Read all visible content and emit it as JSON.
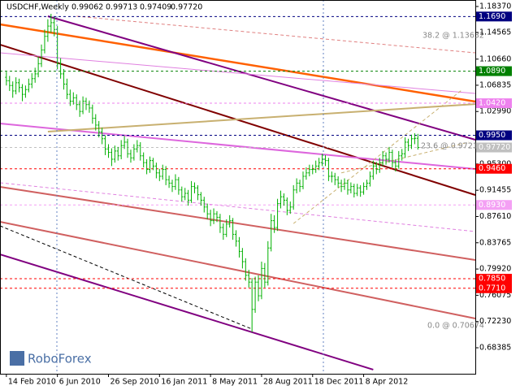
{
  "chart_data": {
    "type": "ohlc",
    "title": "USDCHF,Weekly",
    "last_bar_labels": [
      "0.99062",
      "0.99713",
      "0.97409",
      "0.97720"
    ],
    "logo": "RoboForex",
    "color": "#00b000",
    "xlim": [
      -2,
      147
    ],
    "ylim": [
      0.6458,
      1.1932
    ],
    "xticks": [
      {
        "value": 0,
        "label": "14 Feb 2010"
      },
      {
        "value": 16,
        "label": "6 Jun 2010"
      },
      {
        "value": 32,
        "label": "26 Sep 2010"
      },
      {
        "value": 48,
        "label": "16 Jan 2011"
      },
      {
        "value": 64,
        "label": "8 May 2011"
      },
      {
        "value": 80,
        "label": "28 Aug 2011"
      },
      {
        "value": 96,
        "label": "18 Dec 2011"
      },
      {
        "value": 112,
        "label": "8 Apr 2012"
      }
    ],
    "yticks": [
      {
        "value": 1.1837,
        "label": "1.18370"
      },
      {
        "value": 1.14565,
        "label": "1.14565"
      },
      {
        "value": 1.1066,
        "label": "1.10660"
      },
      {
        "value": 1.06835,
        "label": "1.06835"
      },
      {
        "value": 1.0299,
        "label": "1.02990"
      },
      {
        "value": 0.99145,
        "label": "0.99145"
      },
      {
        "value": 0.953,
        "label": "0.95300"
      },
      {
        "value": 0.91455,
        "label": "0.91455"
      },
      {
        "value": 0.8761,
        "label": "0.87610"
      },
      {
        "value": 0.83765,
        "label": "0.83765"
      },
      {
        "value": 0.7992,
        "label": "0.79920"
      },
      {
        "value": 0.76075,
        "label": "0.76075"
      },
      {
        "value": 0.7223,
        "label": "0.72230"
      },
      {
        "value": 0.68385,
        "label": "0.68385"
      }
    ],
    "levels": [
      {
        "value": 1.169,
        "label": "1.1690",
        "color": "#000080"
      },
      {
        "value": 1.089,
        "label": "1.0890",
        "color": "#008000"
      },
      {
        "value": 1.042,
        "label": "1.0420",
        "color": "#ee82ee"
      },
      {
        "value": 0.995,
        "label": "0.9950",
        "color": "#000080"
      },
      {
        "value": 0.9772,
        "label": "0.97720",
        "color": "#c0c0c0"
      },
      {
        "value": 0.946,
        "label": "0.9460",
        "color": "#ff0000"
      },
      {
        "value": 0.893,
        "label": "0.8930",
        "color": "#f4a0f4"
      },
      {
        "value": 0.785,
        "label": "0.7850",
        "color": "#ff0000"
      },
      {
        "value": 0.771,
        "label": "0.7710",
        "color": "#ff0000"
      }
    ],
    "fib_labels": [
      "38.2 @ 1.13632",
      "23.6 @ 0.97214",
      "0.0 @ 0.70674"
    ],
    "trendlines": [
      {
        "x": [
          -2,
          147
        ],
        "y": [
          1.1575,
          1.0445
        ],
        "color": "#ff6000",
        "width": 2.5
      },
      {
        "x": [
          13,
          147
        ],
        "y": [
          1.1694,
          0.9885
        ],
        "color": "#800080",
        "width": 2
      },
      {
        "x": [
          -2,
          147
        ],
        "y": [
          1.1278,
          0.9076
        ],
        "color": "#800000",
        "width": 2
      },
      {
        "x": [
          -2,
          147
        ],
        "y": [
          1.0123,
          0.9457
        ],
        "color": "#dd66dd",
        "width": 2
      },
      {
        "x": [
          13,
          147
        ],
        "y": [
          1.0004,
          1.0408
        ],
        "color": "#c8b070",
        "width": 2
      },
      {
        "x": [
          -2,
          115
        ],
        "y": [
          0.8207,
          0.6518
        ],
        "color": "#800080",
        "width": 2
      },
      {
        "x": [
          -2,
          147
        ],
        "y": [
          0.9195,
          0.8124
        ],
        "color": "#d06060",
        "width": 2
      },
      {
        "x": [
          -2,
          147
        ],
        "y": [
          0.8683,
          0.7267
        ],
        "color": "#d06060",
        "width": 2
      },
      {
        "x": [
          22,
          147
        ],
        "y": [
          1.1694,
          1.1158
        ],
        "color": "#e08080",
        "width": 1,
        "dash": true
      },
      {
        "x": [
          -2,
          147
        ],
        "y": [
          1.1158,
          1.0563
        ],
        "color": "#e080e0",
        "width": 1
      },
      {
        "x": [
          -2,
          147
        ],
        "y": [
          0.9255,
          0.8541
        ],
        "color": "#e080e0",
        "width": 1,
        "dash": true
      },
      {
        "x": [
          -2,
          77
        ],
        "y": [
          0.8624,
          0.7112
        ],
        "color": "#000000",
        "width": 1,
        "dash": true
      },
      {
        "x": [
          90,
          143
        ],
        "y": [
          0.8658,
          1.0622
        ],
        "color": "#c8b070",
        "width": 1,
        "dash": true
      },
      {
        "x": [
          105,
          145
        ],
        "y": [
          0.94,
          0.985
        ],
        "color": "#c8b070",
        "width": 1,
        "dash": true
      }
    ],
    "values": [
      [
        1.08,
        1.088,
        1.068,
        1.075
      ],
      [
        1.075,
        1.082,
        1.06,
        1.068
      ],
      [
        1.068,
        1.074,
        1.05,
        1.06
      ],
      [
        1.06,
        1.08,
        1.055,
        1.072
      ],
      [
        1.072,
        1.078,
        1.058,
        1.065
      ],
      [
        1.065,
        1.07,
        1.045,
        1.055
      ],
      [
        1.055,
        1.068,
        1.05,
        1.062
      ],
      [
        1.062,
        1.078,
        1.058,
        1.07
      ],
      [
        1.07,
        1.086,
        1.064,
        1.078
      ],
      [
        1.078,
        1.094,
        1.072,
        1.085
      ],
      [
        1.085,
        1.11,
        1.08,
        1.1
      ],
      [
        1.1,
        1.128,
        1.095,
        1.12
      ],
      [
        1.12,
        1.15,
        1.115,
        1.14
      ],
      [
        1.14,
        1.165,
        1.132,
        1.155
      ],
      [
        1.155,
        1.173,
        1.145,
        1.16
      ],
      [
        1.16,
        1.168,
        1.14,
        1.15
      ],
      [
        1.15,
        1.155,
        1.092,
        1.1
      ],
      [
        1.1,
        1.108,
        1.078,
        1.085
      ],
      [
        1.085,
        1.092,
        1.062,
        1.07
      ],
      [
        1.07,
        1.078,
        1.048,
        1.055
      ],
      [
        1.055,
        1.062,
        1.038,
        1.045
      ],
      [
        1.045,
        1.058,
        1.04,
        1.05
      ],
      [
        1.05,
        1.055,
        1.032,
        1.04
      ],
      [
        1.04,
        1.046,
        1.022,
        1.03
      ],
      [
        1.03,
        1.052,
        1.026,
        1.045
      ],
      [
        1.045,
        1.05,
        1.032,
        1.04
      ],
      [
        1.04,
        1.046,
        1.028,
        1.035
      ],
      [
        1.035,
        1.04,
        1.012,
        1.02
      ],
      [
        1.02,
        1.026,
        1.002,
        1.01
      ],
      [
        1.01,
        1.016,
        0.992,
        1.0
      ],
      [
        1.0,
        1.006,
        0.982,
        0.99
      ],
      [
        0.99,
        0.995,
        0.966,
        0.975
      ],
      [
        0.975,
        0.982,
        0.962,
        0.97
      ],
      [
        0.97,
        0.976,
        0.95,
        0.96
      ],
      [
        0.96,
        0.98,
        0.955,
        0.972
      ],
      [
        0.972,
        0.978,
        0.958,
        0.965
      ],
      [
        0.965,
        0.988,
        0.96,
        0.98
      ],
      [
        0.98,
        0.994,
        0.975,
        0.985
      ],
      [
        0.985,
        0.99,
        0.962,
        0.968
      ],
      [
        0.968,
        0.974,
        0.955,
        0.962
      ],
      [
        0.962,
        0.982,
        0.958,
        0.975
      ],
      [
        0.975,
        0.988,
        0.97,
        0.98
      ],
      [
        0.98,
        0.985,
        0.958,
        0.965
      ],
      [
        0.965,
        0.97,
        0.948,
        0.955
      ],
      [
        0.955,
        0.96,
        0.938,
        0.945
      ],
      [
        0.945,
        0.964,
        0.94,
        0.958
      ],
      [
        0.958,
        0.962,
        0.944,
        0.95
      ],
      [
        0.95,
        0.955,
        0.932,
        0.94
      ],
      [
        0.94,
        0.946,
        0.928,
        0.935
      ],
      [
        0.935,
        0.952,
        0.93,
        0.945
      ],
      [
        0.945,
        0.95,
        0.922,
        0.93
      ],
      [
        0.93,
        0.936,
        0.918,
        0.925
      ],
      [
        0.925,
        0.93,
        0.912,
        0.92
      ],
      [
        0.92,
        0.938,
        0.915,
        0.93
      ],
      [
        0.93,
        0.934,
        0.908,
        0.915
      ],
      [
        0.915,
        0.92,
        0.898,
        0.905
      ],
      [
        0.905,
        0.918,
        0.9,
        0.91
      ],
      [
        0.91,
        0.915,
        0.892,
        0.9
      ],
      [
        0.9,
        0.928,
        0.896,
        0.92
      ],
      [
        0.92,
        0.926,
        0.91,
        0.918
      ],
      [
        0.918,
        0.922,
        0.9,
        0.908
      ],
      [
        0.908,
        0.912,
        0.892,
        0.9
      ],
      [
        0.9,
        0.905,
        0.882,
        0.89
      ],
      [
        0.89,
        0.895,
        0.872,
        0.88
      ],
      [
        0.88,
        0.886,
        0.862,
        0.87
      ],
      [
        0.87,
        0.888,
        0.865,
        0.88
      ],
      [
        0.88,
        0.884,
        0.868,
        0.875
      ],
      [
        0.875,
        0.88,
        0.852,
        0.86
      ],
      [
        0.86,
        0.866,
        0.842,
        0.85
      ],
      [
        0.85,
        0.872,
        0.846,
        0.865
      ],
      [
        0.865,
        0.878,
        0.86,
        0.87
      ],
      [
        0.87,
        0.874,
        0.842,
        0.85
      ],
      [
        0.85,
        0.856,
        0.832,
        0.84
      ],
      [
        0.84,
        0.846,
        0.816,
        0.825
      ],
      [
        0.825,
        0.83,
        0.8,
        0.81
      ],
      [
        0.81,
        0.815,
        0.782,
        0.79
      ],
      [
        0.79,
        0.798,
        0.772,
        0.78
      ],
      [
        0.78,
        0.786,
        0.7067,
        0.74
      ],
      [
        0.74,
        0.788,
        0.735,
        0.78
      ],
      [
        0.78,
        0.79,
        0.752,
        0.76
      ],
      [
        0.76,
        0.81,
        0.755,
        0.8
      ],
      [
        0.8,
        0.808,
        0.772,
        0.78
      ],
      [
        0.78,
        0.84,
        0.775,
        0.83
      ],
      [
        0.83,
        0.88,
        0.825,
        0.87
      ],
      [
        0.87,
        0.878,
        0.852,
        0.86
      ],
      [
        0.86,
        0.902,
        0.855,
        0.895
      ],
      [
        0.895,
        0.914,
        0.888,
        0.905
      ],
      [
        0.905,
        0.91,
        0.892,
        0.9
      ],
      [
        0.9,
        0.904,
        0.878,
        0.885
      ],
      [
        0.885,
        0.898,
        0.88,
        0.89
      ],
      [
        0.89,
        0.922,
        0.886,
        0.915
      ],
      [
        0.915,
        0.932,
        0.91,
        0.925
      ],
      [
        0.925,
        0.93,
        0.912,
        0.92
      ],
      [
        0.92,
        0.942,
        0.916,
        0.935
      ],
      [
        0.935,
        0.948,
        0.93,
        0.94
      ],
      [
        0.94,
        0.952,
        0.935,
        0.945
      ],
      [
        0.945,
        0.952,
        0.938,
        0.945
      ],
      [
        0.945,
        0.958,
        0.94,
        0.95
      ],
      [
        0.95,
        0.962,
        0.944,
        0.955
      ],
      [
        0.955,
        0.968,
        0.95,
        0.96
      ],
      [
        0.96,
        0.966,
        0.95,
        0.958
      ],
      [
        0.958,
        0.962,
        0.928,
        0.935
      ],
      [
        0.935,
        0.942,
        0.926,
        0.935
      ],
      [
        0.935,
        0.94,
        0.922,
        0.93
      ],
      [
        0.93,
        0.935,
        0.918,
        0.925
      ],
      [
        0.925,
        0.93,
        0.912,
        0.92
      ],
      [
        0.92,
        0.932,
        0.915,
        0.925
      ],
      [
        0.925,
        0.93,
        0.908,
        0.915
      ],
      [
        0.915,
        0.926,
        0.91,
        0.92
      ],
      [
        0.92,
        0.924,
        0.904,
        0.91
      ],
      [
        0.91,
        0.924,
        0.906,
        0.918
      ],
      [
        0.918,
        0.922,
        0.905,
        0.912
      ],
      [
        0.912,
        0.926,
        0.908,
        0.92
      ],
      [
        0.92,
        0.93,
        0.915,
        0.925
      ],
      [
        0.925,
        0.942,
        0.92,
        0.935
      ],
      [
        0.935,
        0.958,
        0.93,
        0.95
      ],
      [
        0.95,
        0.956,
        0.938,
        0.945
      ],
      [
        0.945,
        0.962,
        0.94,
        0.955
      ],
      [
        0.955,
        0.972,
        0.95,
        0.965
      ],
      [
        0.965,
        0.97,
        0.952,
        0.96
      ],
      [
        0.96,
        0.978,
        0.955,
        0.97
      ],
      [
        0.97,
        0.974,
        0.948,
        0.955
      ],
      [
        0.955,
        0.96,
        0.942,
        0.95
      ],
      [
        0.95,
        0.972,
        0.946,
        0.965
      ],
      [
        0.965,
        0.975,
        0.958,
        0.968
      ],
      [
        0.968,
        0.992,
        0.962,
        0.985
      ],
      [
        0.985,
        0.99,
        0.972,
        0.98
      ],
      [
        0.98,
        0.996,
        0.975,
        0.99
      ],
      [
        0.99,
        0.998,
        0.982,
        0.9906
      ],
      [
        0.99062,
        0.99713,
        0.97409,
        0.9772
      ]
    ]
  }
}
